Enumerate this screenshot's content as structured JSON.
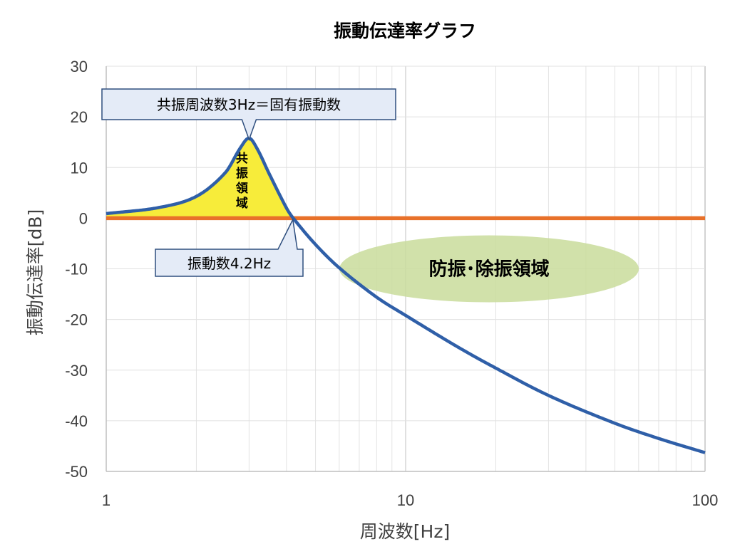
{
  "chart_data": {
    "type": "line",
    "title": "振動伝達率グラフ",
    "xlabel": "周波数[Hz]",
    "ylabel": "振動伝達率[dB]",
    "x_scale": "log",
    "xlim": [
      1,
      100
    ],
    "ylim": [
      -50,
      30
    ],
    "x_ticks": [
      "1",
      "10",
      "100"
    ],
    "y_ticks": [
      "30",
      "20",
      "10",
      "0",
      "-10",
      "-20",
      "-30",
      "-40",
      "-50"
    ],
    "grid": true,
    "series": [
      {
        "color": "#2f5fa8",
        "x": [
          1,
          1.5,
          2,
          2.5,
          2.8,
          3,
          3.2,
          3.5,
          4,
          4.2,
          5,
          6,
          8,
          10,
          15,
          20,
          30,
          50,
          70,
          100
        ],
        "y": [
          0.9,
          2.1,
          4.3,
          9.0,
          13.8,
          15.8,
          13.6,
          8.8,
          2.0,
          0.1,
          -5.2,
          -9.8,
          -15.6,
          -19.2,
          -25.5,
          -29.6,
          -35.0,
          -40.5,
          -43.5,
          -46.3
        ]
      },
      {
        "color": "#e8712a",
        "x": [
          1,
          100
        ],
        "y": [
          0,
          0
        ]
      }
    ],
    "annotations": {
      "resonance_callout": "共振周波数3Hz＝固有振動数",
      "crossing_callout": "振動数4.2Hz",
      "resonance_zone": "共振領域",
      "isolation_zone": "防振･除振領域"
    },
    "colors": {
      "curve": "#2f5fa8",
      "zero_line": "#e8712a",
      "resonance_fill": "#f7ec3a",
      "isolation_fill": "#c9dc9b",
      "callout_fill": "#e4ebf7",
      "callout_border": "#2f4f7f"
    }
  }
}
